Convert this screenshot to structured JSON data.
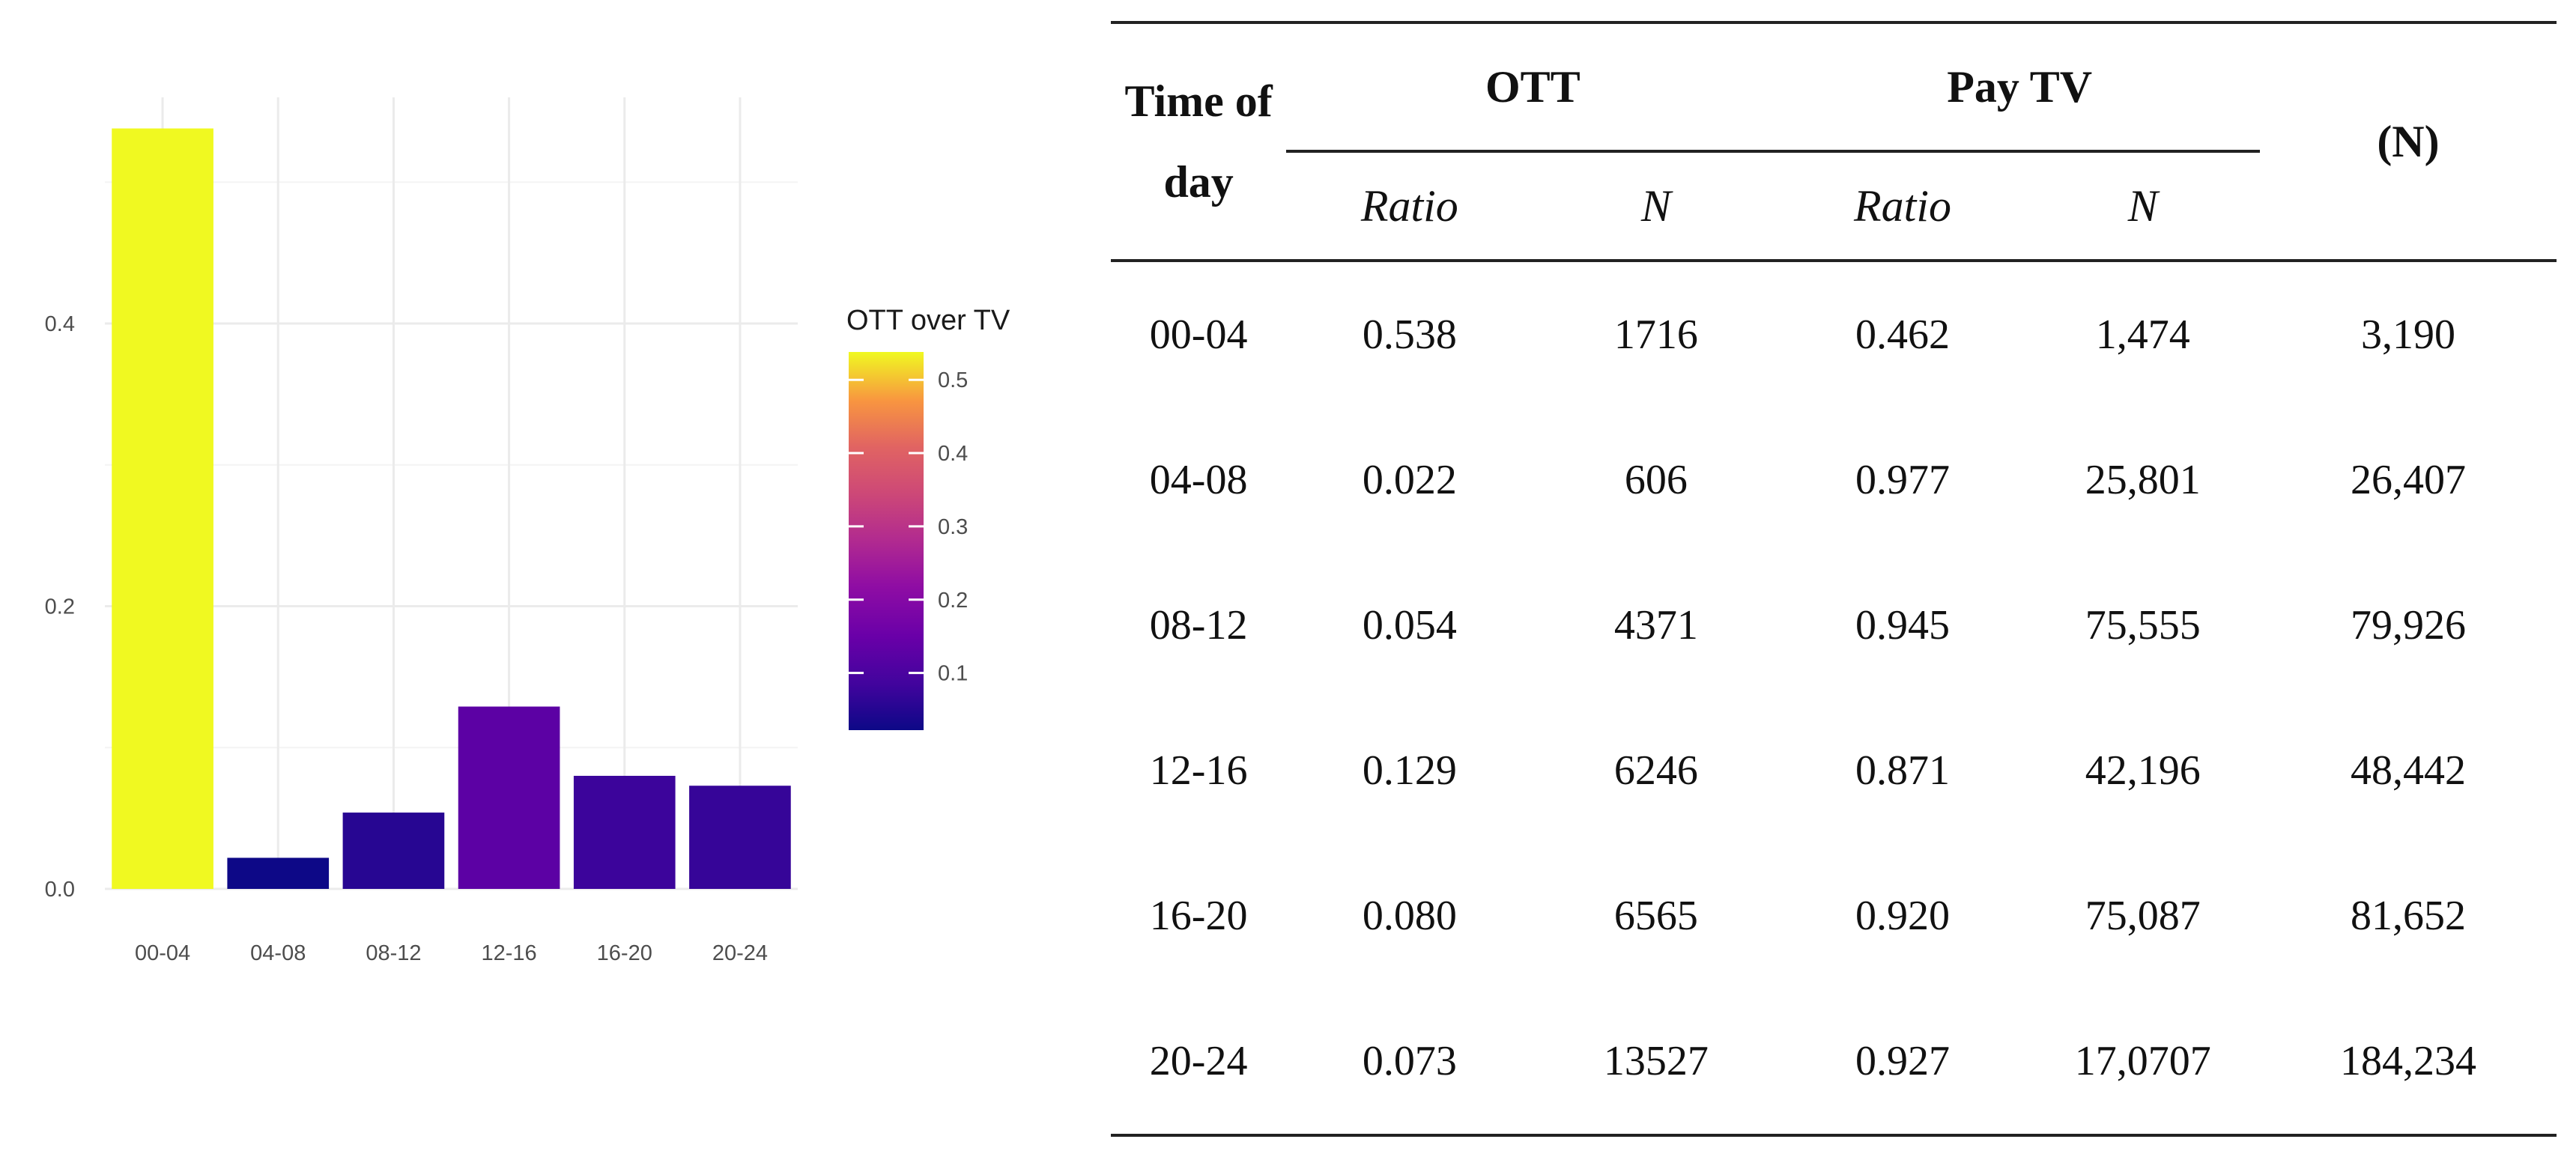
{
  "chart_data": {
    "type": "bar",
    "categories": [
      "00-04",
      "04-08",
      "08-12",
      "12-16",
      "16-20",
      "20-24"
    ],
    "values": [
      0.538,
      0.022,
      0.054,
      0.129,
      0.08,
      0.073
    ],
    "title": "",
    "xlabel": "",
    "ylabel": "",
    "ylim": [
      0,
      0.56
    ],
    "yticks": [
      "0.0",
      "0.2",
      "0.4"
    ],
    "grid": true,
    "color_scale": "plasma",
    "legend": {
      "title": "OTT over TV",
      "placement": "right",
      "ticks": [
        "0.5",
        "0.4",
        "0.3",
        "0.2",
        "0.1"
      ],
      "range": [
        0.022,
        0.538
      ]
    }
  },
  "table": {
    "header": {
      "time_of_day": "Time of day",
      "ott": "OTT",
      "pay_tv": "Pay TV",
      "total": "(N)",
      "ratio": "Ratio",
      "n": "N"
    },
    "rows": [
      {
        "time": "00-04",
        "ott_ratio": "0.538",
        "ott_n": "1716",
        "tv_ratio": "0.462",
        "tv_n": "1,474",
        "total": "3,190"
      },
      {
        "time": "04-08",
        "ott_ratio": "0.022",
        "ott_n": "606",
        "tv_ratio": "0.977",
        "tv_n": "25,801",
        "total": "26,407"
      },
      {
        "time": "08-12",
        "ott_ratio": "0.054",
        "ott_n": "4371",
        "tv_ratio": "0.945",
        "tv_n": "75,555",
        "total": "79,926"
      },
      {
        "time": "12-16",
        "ott_ratio": "0.129",
        "ott_n": "6246",
        "tv_ratio": "0.871",
        "tv_n": "42,196",
        "total": "48,442"
      },
      {
        "time": "16-20",
        "ott_ratio": "0.080",
        "ott_n": "6565",
        "tv_ratio": "0.920",
        "tv_n": "75,087",
        "total": "81,652"
      },
      {
        "time": "20-24",
        "ott_ratio": "0.073",
        "ott_n": "13527",
        "tv_ratio": "0.927",
        "tv_n": "17,0707",
        "total": "184,234"
      }
    ]
  }
}
